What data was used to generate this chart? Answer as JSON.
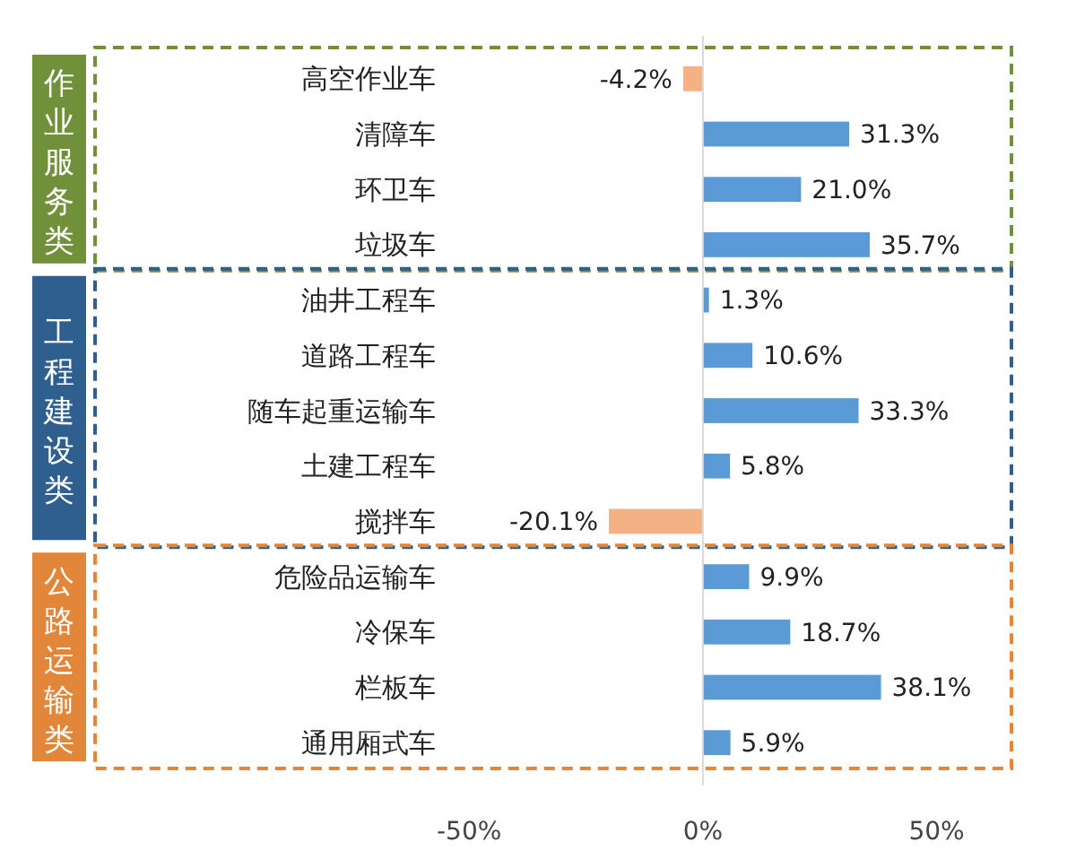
{
  "chart_data": {
    "type": "bar",
    "orientation": "horizontal",
    "categories": [
      "高空作业车",
      "清障车",
      "环卫车",
      "垃圾车",
      "油井工程车",
      "道路工程车",
      "随车起重运输车",
      "土建工程车",
      "搅拌车",
      "危险品运输车",
      "冷保车",
      "栏板车",
      "通用厢式车"
    ],
    "values": [
      -4.2,
      31.3,
      21.0,
      35.7,
      1.3,
      10.6,
      33.3,
      5.8,
      -20.1,
      9.9,
      18.7,
      38.1,
      5.9
    ],
    "value_labels": [
      "-4.2%",
      "31.3%",
      "21.0%",
      "35.7%",
      "1.3%",
      "10.6%",
      "33.3%",
      "5.8%",
      "-20.1%",
      "9.9%",
      "18.7%",
      "38.1%",
      "5.9%"
    ],
    "colors": [
      "#f4b183",
      "#5b9bd5",
      "#5b9bd5",
      "#5b9bd5",
      "#5b9bd5",
      "#5b9bd5",
      "#5b9bd5",
      "#5b9bd5",
      "#f4b183",
      "#5b9bd5",
      "#5b9bd5",
      "#5b9bd5",
      "#5b9bd5"
    ],
    "xlim": [
      -130,
      66
    ],
    "xticks": [
      {
        "value": -50,
        "label": "-50%"
      },
      {
        "value": 0,
        "label": "0%"
      },
      {
        "value": 50,
        "label": "50%"
      }
    ],
    "annotations": [
      "作业服务类",
      "工程建设类",
      "公路运输类"
    ]
  }
}
